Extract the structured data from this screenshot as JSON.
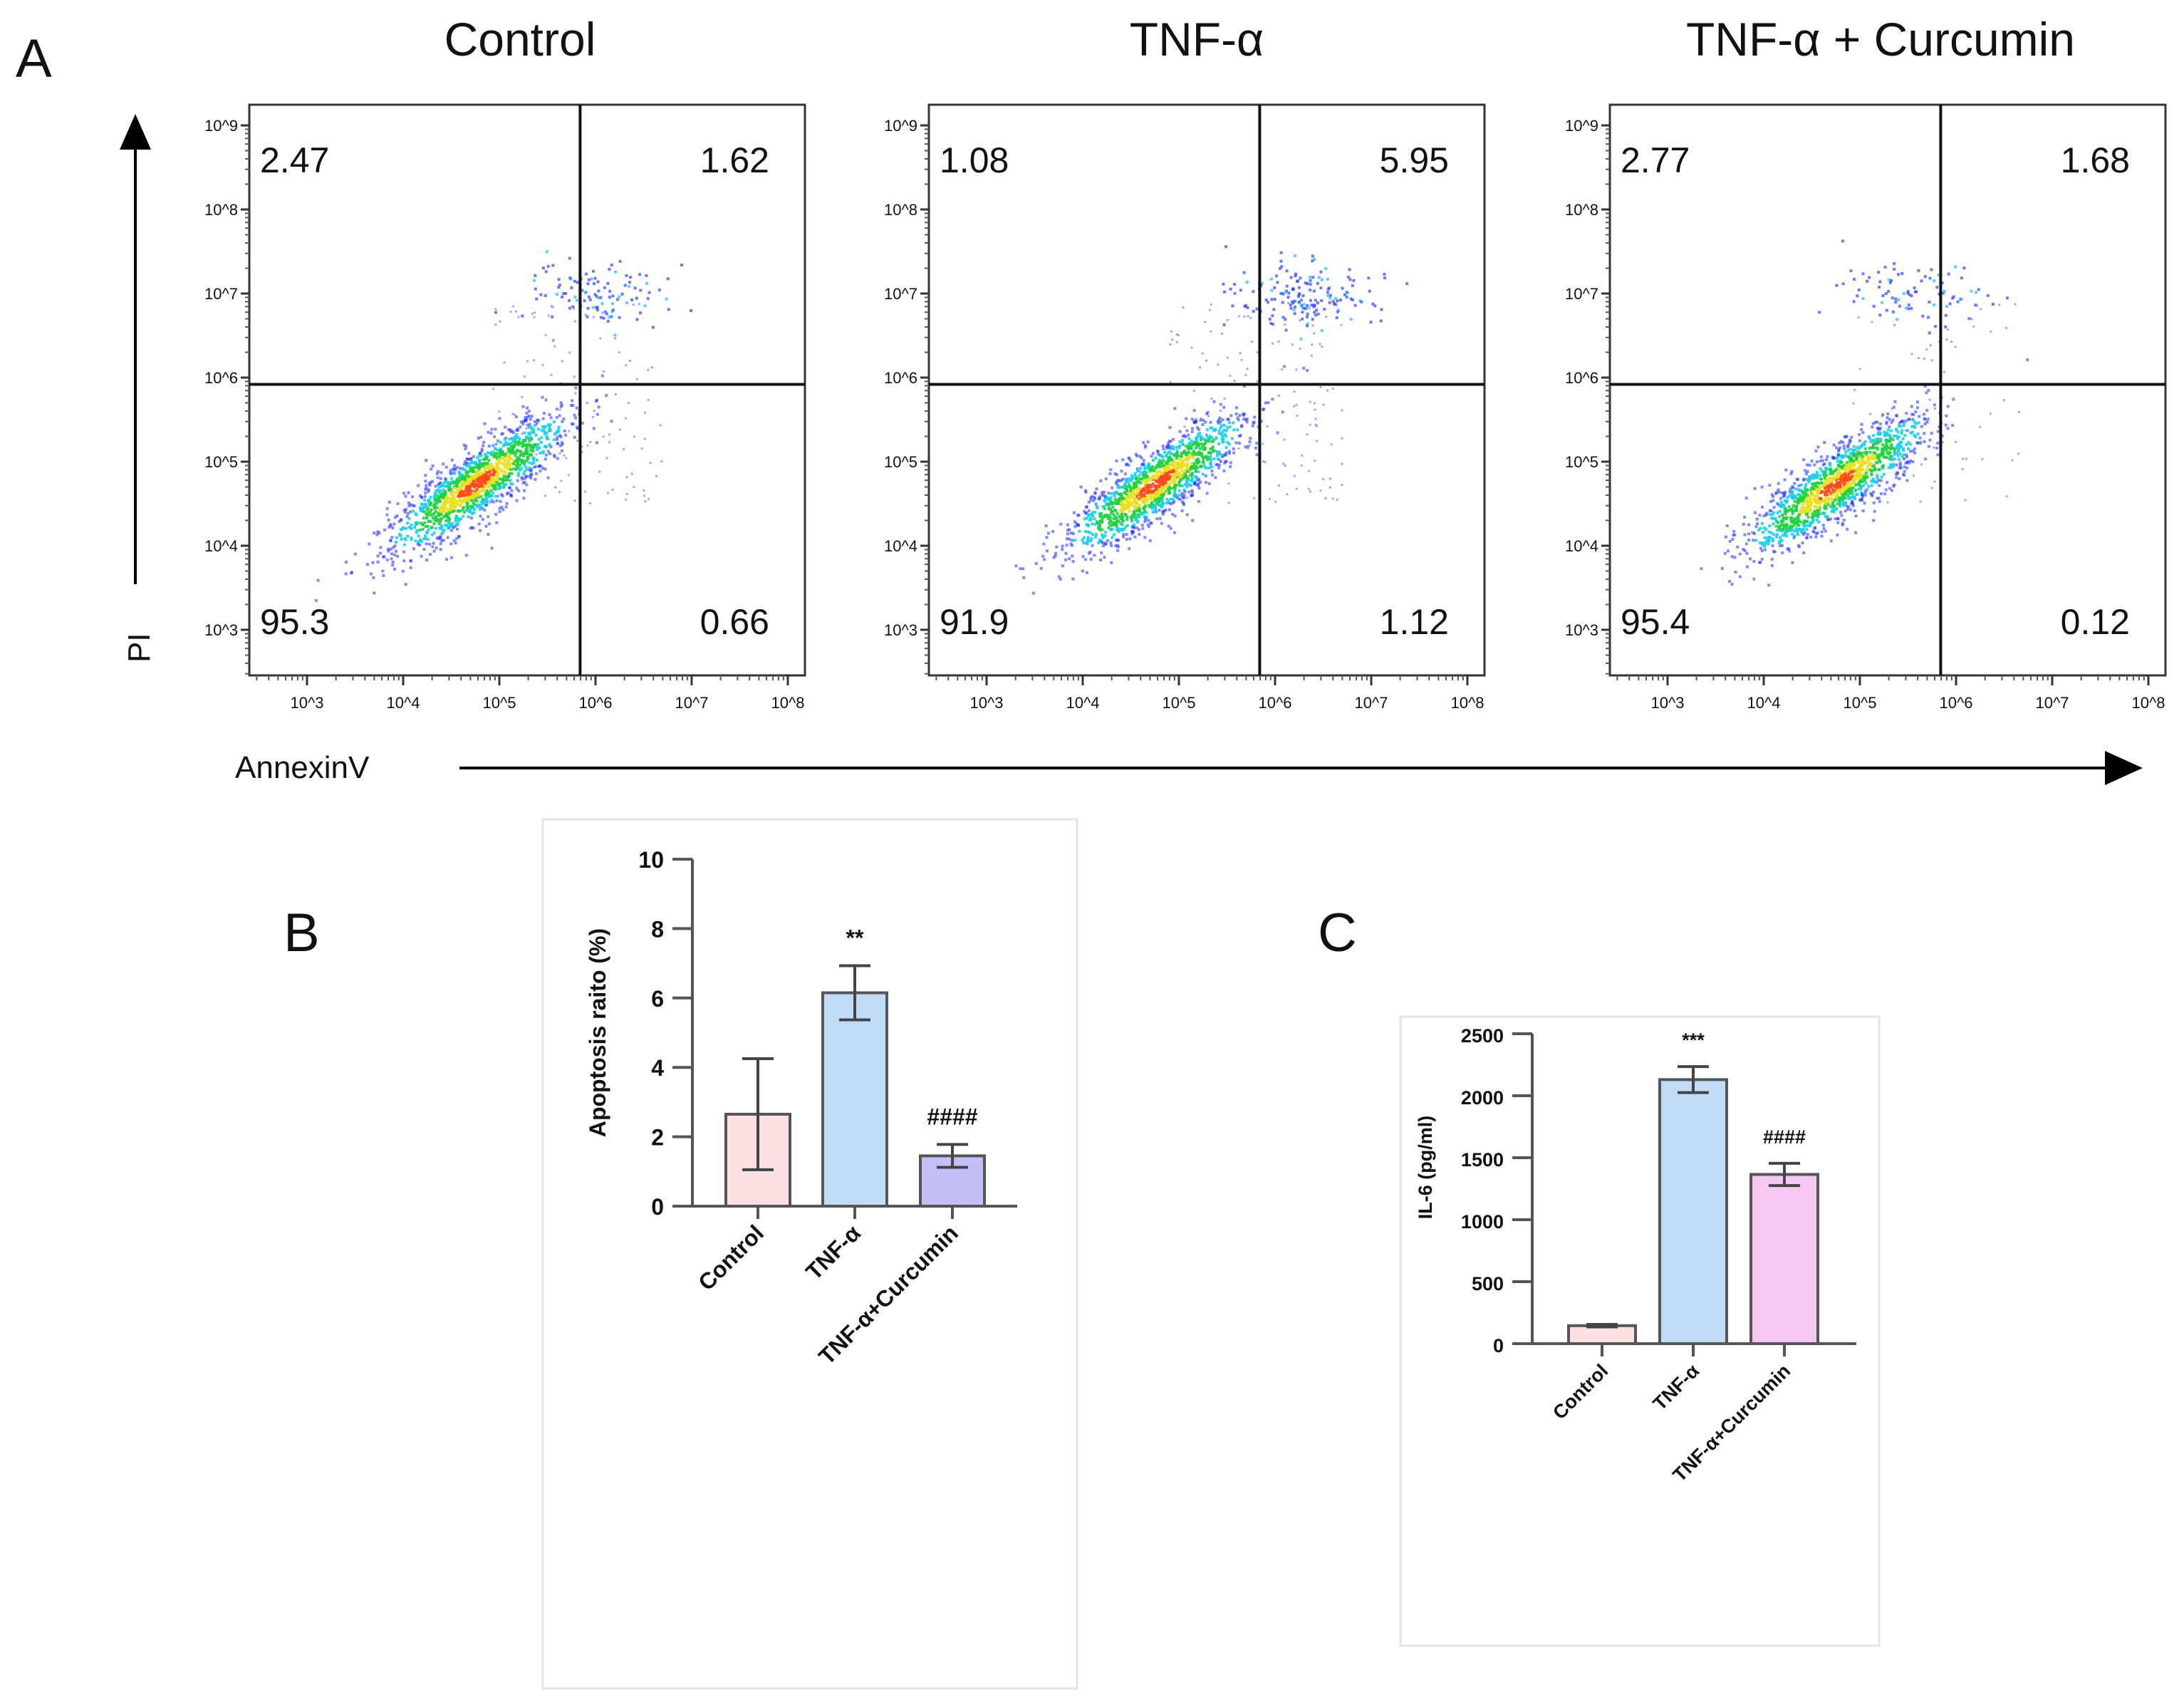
{
  "panel_labels": {
    "a": "A",
    "b": "B",
    "c": "C"
  },
  "flow": {
    "y_axis_label": "PI",
    "x_axis_label": "AnnexinV",
    "tick_labels": [
      "10^3",
      "10^4",
      "10^5",
      "10^6",
      "10^7",
      "10^8",
      "10^9"
    ]
  },
  "chart_data": [
    {
      "type": "scatter",
      "title": "Control",
      "xlabel": "AnnexinV",
      "ylabel": "PI",
      "xscale": "log",
      "yscale": "log",
      "xlim_log10": [
        2.4,
        8.2
      ],
      "ylim_log10": [
        2.45,
        9.25
      ],
      "gate_log10": {
        "x": 5.84,
        "y": 5.92
      },
      "quadrants": {
        "upper_left": "2.47",
        "upper_right": "1.62",
        "lower_left": "95.3",
        "lower_right": "0.66"
      }
    },
    {
      "type": "scatter",
      "title": "TNF-α",
      "xlabel": "AnnexinV",
      "ylabel": "PI",
      "xscale": "log",
      "yscale": "log",
      "xlim_log10": [
        2.4,
        8.2
      ],
      "ylim_log10": [
        2.45,
        9.25
      ],
      "gate_log10": {
        "x": 5.84,
        "y": 5.92
      },
      "quadrants": {
        "upper_left": "1.08",
        "upper_right": "5.95",
        "lower_left": "91.9",
        "lower_right": "1.12"
      }
    },
    {
      "type": "scatter",
      "title": "TNF-α + Curcumin",
      "xlabel": "AnnexinV",
      "ylabel": "PI",
      "xscale": "log",
      "yscale": "log",
      "xlim_log10": [
        2.4,
        8.2
      ],
      "ylim_log10": [
        2.45,
        9.25
      ],
      "gate_log10": {
        "x": 5.84,
        "y": 5.92
      },
      "quadrants": {
        "upper_left": "2.77",
        "upper_right": "1.68",
        "lower_left": "95.4",
        "lower_right": "0.12"
      }
    },
    {
      "type": "bar",
      "categories": [
        "Control",
        "TNF-α",
        "TNF-α+Curcumin"
      ],
      "values": [
        2.65,
        6.15,
        1.45
      ],
      "errors": [
        1.6,
        0.78,
        0.33
      ],
      "colors": [
        "#fde0e2",
        "#c0dcf6",
        "#c3c0f7"
      ],
      "annotations": [
        "",
        "**",
        "####"
      ],
      "ylabel": "Apoptosis raito (%)",
      "ylim": [
        0,
        10
      ],
      "yticks": [
        0,
        2,
        4,
        6,
        8,
        10
      ]
    },
    {
      "type": "bar",
      "categories": [
        "Control",
        "TNF-α",
        "TNF-α+Curcumin"
      ],
      "values": [
        145,
        2130,
        1365
      ],
      "errors": [
        10,
        105,
        90
      ],
      "colors": [
        "#fde0e2",
        "#c0dcf6",
        "#f8c8f4"
      ],
      "annotations": [
        "",
        "***",
        "####"
      ],
      "ylabel": "IL-6 (pg/ml)",
      "ylim": [
        0,
        2500
      ],
      "yticks": [
        0,
        500,
        1000,
        1500,
        2000,
        2500
      ]
    }
  ]
}
